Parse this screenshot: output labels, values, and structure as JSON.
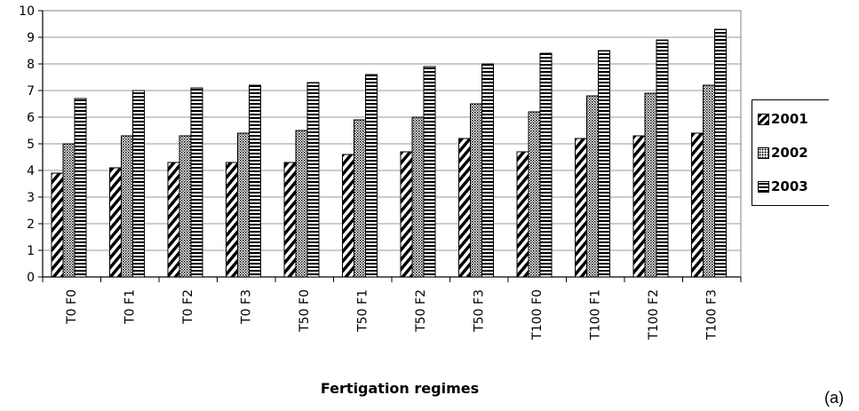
{
  "chart_data": {
    "type": "bar",
    "categories": [
      "T0 F0",
      "T0 F1",
      "T0 F2",
      "T0 F3",
      "T50 F0",
      "T50 F1",
      "T50 F2",
      "T50 F3",
      "T100 F0",
      "T100 F1",
      "T100 F2",
      "T100 F3"
    ],
    "series": [
      {
        "name": "2001",
        "values": [
          3.9,
          4.1,
          4.3,
          4.3,
          4.3,
          4.6,
          4.7,
          5.2,
          4.7,
          5.2,
          5.3,
          5.4
        ]
      },
      {
        "name": "2002",
        "values": [
          5.0,
          5.3,
          5.3,
          5.4,
          5.5,
          5.9,
          6.0,
          6.5,
          6.2,
          6.8,
          6.9,
          7.2
        ]
      },
      {
        "name": "2003",
        "values": [
          6.7,
          7.0,
          7.1,
          7.2,
          7.3,
          7.6,
          7.9,
          8.0,
          8.4,
          8.5,
          8.9,
          9.3
        ]
      }
    ],
    "xlabel": "Fertigation regimes",
    "ylabel": "",
    "ylim": [
      0,
      10
    ],
    "yticks": [
      0,
      1,
      2,
      3,
      4,
      5,
      6,
      7,
      8,
      9,
      10
    ],
    "grid": true,
    "legend_position": "right"
  },
  "legend": [
    {
      "label": "2001",
      "pattern": "diagonal-hatch"
    },
    {
      "label": "2002",
      "pattern": "dots"
    },
    {
      "label": "2003",
      "pattern": "horizontal-lines"
    }
  ],
  "panel_label": "(a)",
  "colors": {
    "ink": "#000000",
    "grid": "#9a9a9a",
    "plot_border": "#7f7f7f",
    "background": "#ffffff"
  }
}
